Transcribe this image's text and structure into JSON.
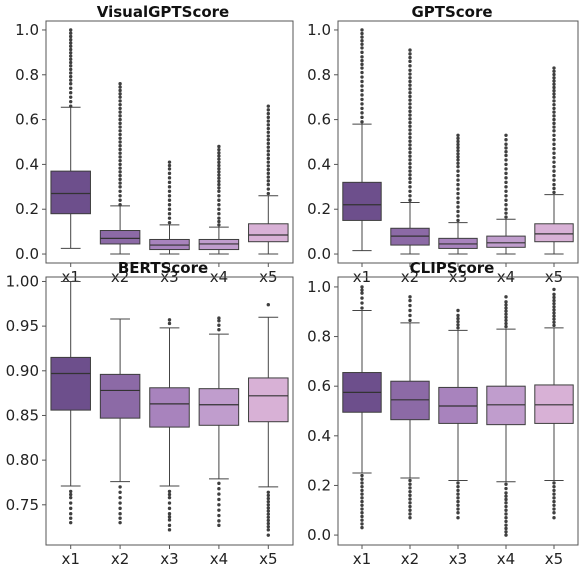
{
  "palette": [
    "#6d4f8c",
    "#8c6aa6",
    "#a883bd",
    "#c09dcd",
    "#d8b1d6"
  ],
  "chart_data": [
    {
      "type": "box",
      "title": "VisualGPTScore",
      "categories": [
        "x1",
        "x2",
        "x3",
        "x4",
        "x5"
      ],
      "ylim": [
        -0.04,
        1.04
      ],
      "yticks": [
        0.0,
        0.2,
        0.4,
        0.6,
        0.8,
        1.0
      ],
      "ytick_labels": [
        "0.0",
        "0.2",
        "0.4",
        "0.6",
        "0.8",
        "1.0"
      ],
      "boxes": [
        {
          "q1": 0.18,
          "median": 0.27,
          "q3": 0.37,
          "whisker_low": 0.025,
          "whisker_high": 0.655,
          "outliers_low": [],
          "outliers_high": [
            0.66,
            0.68,
            0.7,
            0.72,
            0.74,
            0.76,
            0.84,
            1.0
          ]
        },
        {
          "q1": 0.045,
          "median": 0.07,
          "q3": 0.105,
          "whisker_low": 0.0,
          "whisker_high": 0.215,
          "outliers_low": [],
          "outliers_high": [
            0.22,
            0.26,
            0.3,
            0.35,
            0.4,
            0.45,
            0.5,
            0.55,
            0.6,
            0.65,
            0.7,
            0.73,
            0.76
          ]
        },
        {
          "q1": 0.02,
          "median": 0.04,
          "q3": 0.065,
          "whisker_low": 0.0,
          "whisker_high": 0.13,
          "outliers_low": [],
          "outliers_high": [
            0.14,
            0.18,
            0.22,
            0.26,
            0.3,
            0.34,
            0.38,
            0.41
          ]
        },
        {
          "q1": 0.02,
          "median": 0.045,
          "q3": 0.065,
          "whisker_low": 0.0,
          "whisker_high": 0.12,
          "outliers_low": [],
          "outliers_high": [
            0.13,
            0.16,
            0.2,
            0.24,
            0.28,
            0.31,
            0.48
          ]
        },
        {
          "q1": 0.055,
          "median": 0.085,
          "q3": 0.135,
          "whisker_low": 0.0,
          "whisker_high": 0.26,
          "outliers_low": [],
          "outliers_high": [
            0.27,
            0.31,
            0.36,
            0.41,
            0.46,
            0.51,
            0.56,
            0.61,
            0.66
          ]
        }
      ]
    },
    {
      "type": "box",
      "title": "GPTScore",
      "categories": [
        "x1",
        "x2",
        "x3",
        "x4",
        "x5"
      ],
      "ylim": [
        -0.04,
        1.04
      ],
      "yticks": [
        0.0,
        0.2,
        0.4,
        0.6,
        0.8,
        1.0
      ],
      "ytick_labels": [
        "0.0",
        "0.2",
        "0.4",
        "0.6",
        "0.8",
        "1.0"
      ],
      "boxes": [
        {
          "q1": 0.15,
          "median": 0.22,
          "q3": 0.32,
          "whisker_low": 0.015,
          "whisker_high": 0.58,
          "outliers_low": [],
          "outliers_high": [
            0.59,
            0.63,
            0.67,
            0.71,
            0.75,
            0.79,
            0.83,
            0.88,
            0.92,
            1.0
          ]
        },
        {
          "q1": 0.04,
          "median": 0.08,
          "q3": 0.115,
          "whisker_low": 0.0,
          "whisker_high": 0.23,
          "outliers_low": [],
          "outliers_high": [
            0.24,
            0.28,
            0.32,
            0.37,
            0.42,
            0.47,
            0.52,
            0.57,
            0.62,
            0.67,
            0.72,
            0.77,
            0.82,
            0.86,
            0.91
          ]
        },
        {
          "q1": 0.025,
          "median": 0.045,
          "q3": 0.07,
          "whisker_low": 0.0,
          "whisker_high": 0.14,
          "outliers_low": [],
          "outliers_high": [
            0.15,
            0.19,
            0.23,
            0.27,
            0.31,
            0.35,
            0.39,
            0.42,
            0.53
          ]
        },
        {
          "q1": 0.03,
          "median": 0.05,
          "q3": 0.08,
          "whisker_low": 0.0,
          "whisker_high": 0.155,
          "outliers_low": [],
          "outliers_high": [
            0.165,
            0.2,
            0.24,
            0.28,
            0.32,
            0.36,
            0.4,
            0.44,
            0.49,
            0.53
          ]
        },
        {
          "q1": 0.055,
          "median": 0.09,
          "q3": 0.135,
          "whisker_low": 0.0,
          "whisker_high": 0.265,
          "outliers_low": [],
          "outliers_high": [
            0.275,
            0.31,
            0.35,
            0.39,
            0.43,
            0.47,
            0.51,
            0.55,
            0.6,
            0.65,
            0.7,
            0.83
          ]
        }
      ]
    },
    {
      "type": "box",
      "title": "BERTScore",
      "categories": [
        "x1",
        "x2",
        "x3",
        "x4",
        "x5"
      ],
      "ylim": [
        0.705,
        1.005
      ],
      "yticks": [
        0.75,
        0.8,
        0.85,
        0.9,
        0.95,
        1.0
      ],
      "ytick_labels": [
        "0.75",
        "0.80",
        "0.85",
        "0.90",
        "0.95",
        "1.00"
      ],
      "boxes": [
        {
          "q1": 0.856,
          "median": 0.897,
          "q3": 0.915,
          "whisker_low": 0.771,
          "whisker_high": 1.0,
          "outliers_low": [
            0.765,
            0.758,
            0.752,
            0.746,
            0.74,
            0.735,
            0.73
          ],
          "outliers_high": []
        },
        {
          "q1": 0.847,
          "median": 0.878,
          "q3": 0.896,
          "whisker_low": 0.776,
          "whisker_high": 0.958,
          "outliers_low": [
            0.77,
            0.764,
            0.758,
            0.752,
            0.746,
            0.74,
            0.735,
            0.73
          ],
          "outliers_high": []
        },
        {
          "q1": 0.837,
          "median": 0.863,
          "q3": 0.881,
          "whisker_low": 0.771,
          "whisker_high": 0.948,
          "outliers_low": [
            0.765,
            0.758,
            0.752,
            0.746,
            0.74,
            0.733,
            0.727,
            0.722
          ],
          "outliers_high": [
            0.953,
            0.957
          ]
        },
        {
          "q1": 0.839,
          "median": 0.862,
          "q3": 0.88,
          "whisker_low": 0.779,
          "whisker_high": 0.941,
          "outliers_low": [
            0.774,
            0.768,
            0.762,
            0.756,
            0.75,
            0.744,
            0.738,
            0.732,
            0.727
          ],
          "outliers_high": [
            0.946,
            0.951,
            0.956,
            0.959
          ]
        },
        {
          "q1": 0.843,
          "median": 0.872,
          "q3": 0.892,
          "whisker_low": 0.77,
          "whisker_high": 0.96,
          "outliers_low": [
            0.764,
            0.757,
            0.75,
            0.743,
            0.736,
            0.729,
            0.722,
            0.716
          ],
          "outliers_high": [
            0.974
          ]
        }
      ]
    },
    {
      "type": "box",
      "title": "CLIPScore",
      "categories": [
        "x1",
        "x2",
        "x3",
        "x4",
        "x5"
      ],
      "ylim": [
        -0.04,
        1.04
      ],
      "yticks": [
        0.0,
        0.2,
        0.4,
        0.6,
        0.8,
        1.0
      ],
      "ytick_labels": [
        "0.0",
        "0.2",
        "0.4",
        "0.6",
        "0.8",
        "1.0"
      ],
      "boxes": [
        {
          "q1": 0.495,
          "median": 0.575,
          "q3": 0.655,
          "whisker_low": 0.25,
          "whisker_high": 0.905,
          "outliers_low": [
            0.24,
            0.21,
            0.18,
            0.15,
            0.12,
            0.09,
            0.06,
            0.03
          ],
          "outliers_high": [
            0.915,
            0.935,
            0.955,
            0.975,
            1.0
          ]
        },
        {
          "q1": 0.465,
          "median": 0.545,
          "q3": 0.62,
          "whisker_low": 0.23,
          "whisker_high": 0.855,
          "outliers_low": [
            0.22,
            0.19,
            0.16,
            0.13,
            0.1,
            0.07
          ],
          "outliers_high": [
            0.865,
            0.885,
            0.905,
            0.925,
            0.945,
            0.96
          ]
        },
        {
          "q1": 0.45,
          "median": 0.52,
          "q3": 0.595,
          "whisker_low": 0.22,
          "whisker_high": 0.825,
          "outliers_low": [
            0.21,
            0.18,
            0.15,
            0.12,
            0.09,
            0.07
          ],
          "outliers_high": [
            0.835,
            0.86,
            0.885,
            0.905
          ]
        },
        {
          "q1": 0.445,
          "median": 0.525,
          "q3": 0.6,
          "whisker_low": 0.215,
          "whisker_high": 0.83,
          "outliers_low": [
            0.205,
            0.17,
            0.13,
            0.1,
            0.07,
            0.04,
            0.0
          ],
          "outliers_high": [
            0.84,
            0.865,
            0.89,
            0.915,
            0.94,
            0.96
          ]
        },
        {
          "q1": 0.45,
          "median": 0.525,
          "q3": 0.605,
          "whisker_low": 0.22,
          "whisker_high": 0.835,
          "outliers_low": [
            0.21,
            0.18,
            0.15,
            0.12,
            0.09,
            0.07
          ],
          "outliers_high": [
            0.845,
            0.87,
            0.895,
            0.92,
            0.945,
            0.97,
            0.99
          ]
        }
      ]
    }
  ]
}
